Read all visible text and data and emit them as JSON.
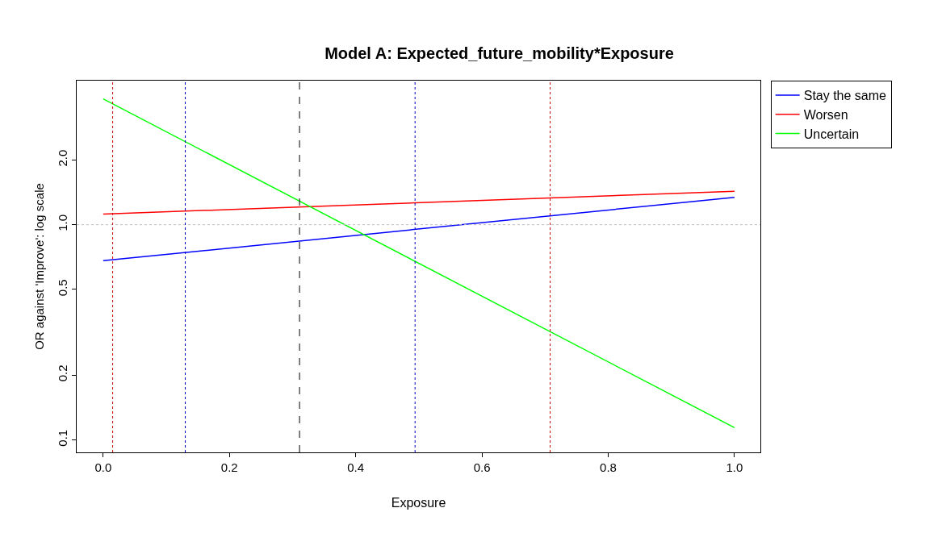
{
  "chart_data": {
    "type": "line",
    "title": "Model A: Expected_future_mobility*Exposure",
    "xlabel": "Exposure",
    "ylabel": "OR against 'Improve': log scale",
    "x": [
      0,
      1
    ],
    "series": [
      {
        "name": "Stay the same",
        "color": "#0000ff",
        "values": [
          0.68,
          1.34
        ]
      },
      {
        "name": "Worsen",
        "color": "#ff0000",
        "values": [
          1.12,
          1.43
        ]
      },
      {
        "name": "Uncertain",
        "color": "#00ff00",
        "values": [
          3.84,
          0.114
        ]
      }
    ],
    "log": "y",
    "xlim": [
      -0.042,
      1.041
    ],
    "ylim": [
      0.0875,
      4.67
    ],
    "xticks": [
      {
        "value": 0,
        "label": "0.0"
      },
      {
        "value": 0.2,
        "label": "0.2"
      },
      {
        "value": 0.4,
        "label": "0.4"
      },
      {
        "value": 0.6,
        "label": "0.6"
      },
      {
        "value": 0.8,
        "label": "0.8"
      },
      {
        "value": 1,
        "label": "1.0"
      }
    ],
    "yticks": [
      {
        "value": 0.1,
        "label": "0.1"
      },
      {
        "value": 0.2,
        "label": "0.2"
      },
      {
        "value": 0.5,
        "label": "0.5"
      },
      {
        "value": 1,
        "label": "1.0"
      },
      {
        "value": 2,
        "label": "2.0"
      }
    ],
    "ref_lines": [
      {
        "axis": "y",
        "value": 1,
        "color": "#bebebe",
        "line_style": "dotted"
      },
      {
        "axis": "x",
        "value": 0.015,
        "color": "#cd0000",
        "line_style": "dotted"
      },
      {
        "axis": "x",
        "value": 0.13,
        "color": "#0000cd",
        "line_style": "dotted"
      },
      {
        "axis": "x",
        "value": 0.311,
        "color": "#000000",
        "line_style": "dashed"
      },
      {
        "axis": "x",
        "value": 0.494,
        "color": "#0000cd",
        "line_style": "dotted"
      },
      {
        "axis": "x",
        "value": 0.708,
        "color": "#cd0000",
        "line_style": "dotted"
      }
    ],
    "legend": "right",
    "line_style": "solid",
    "marker": "none"
  }
}
